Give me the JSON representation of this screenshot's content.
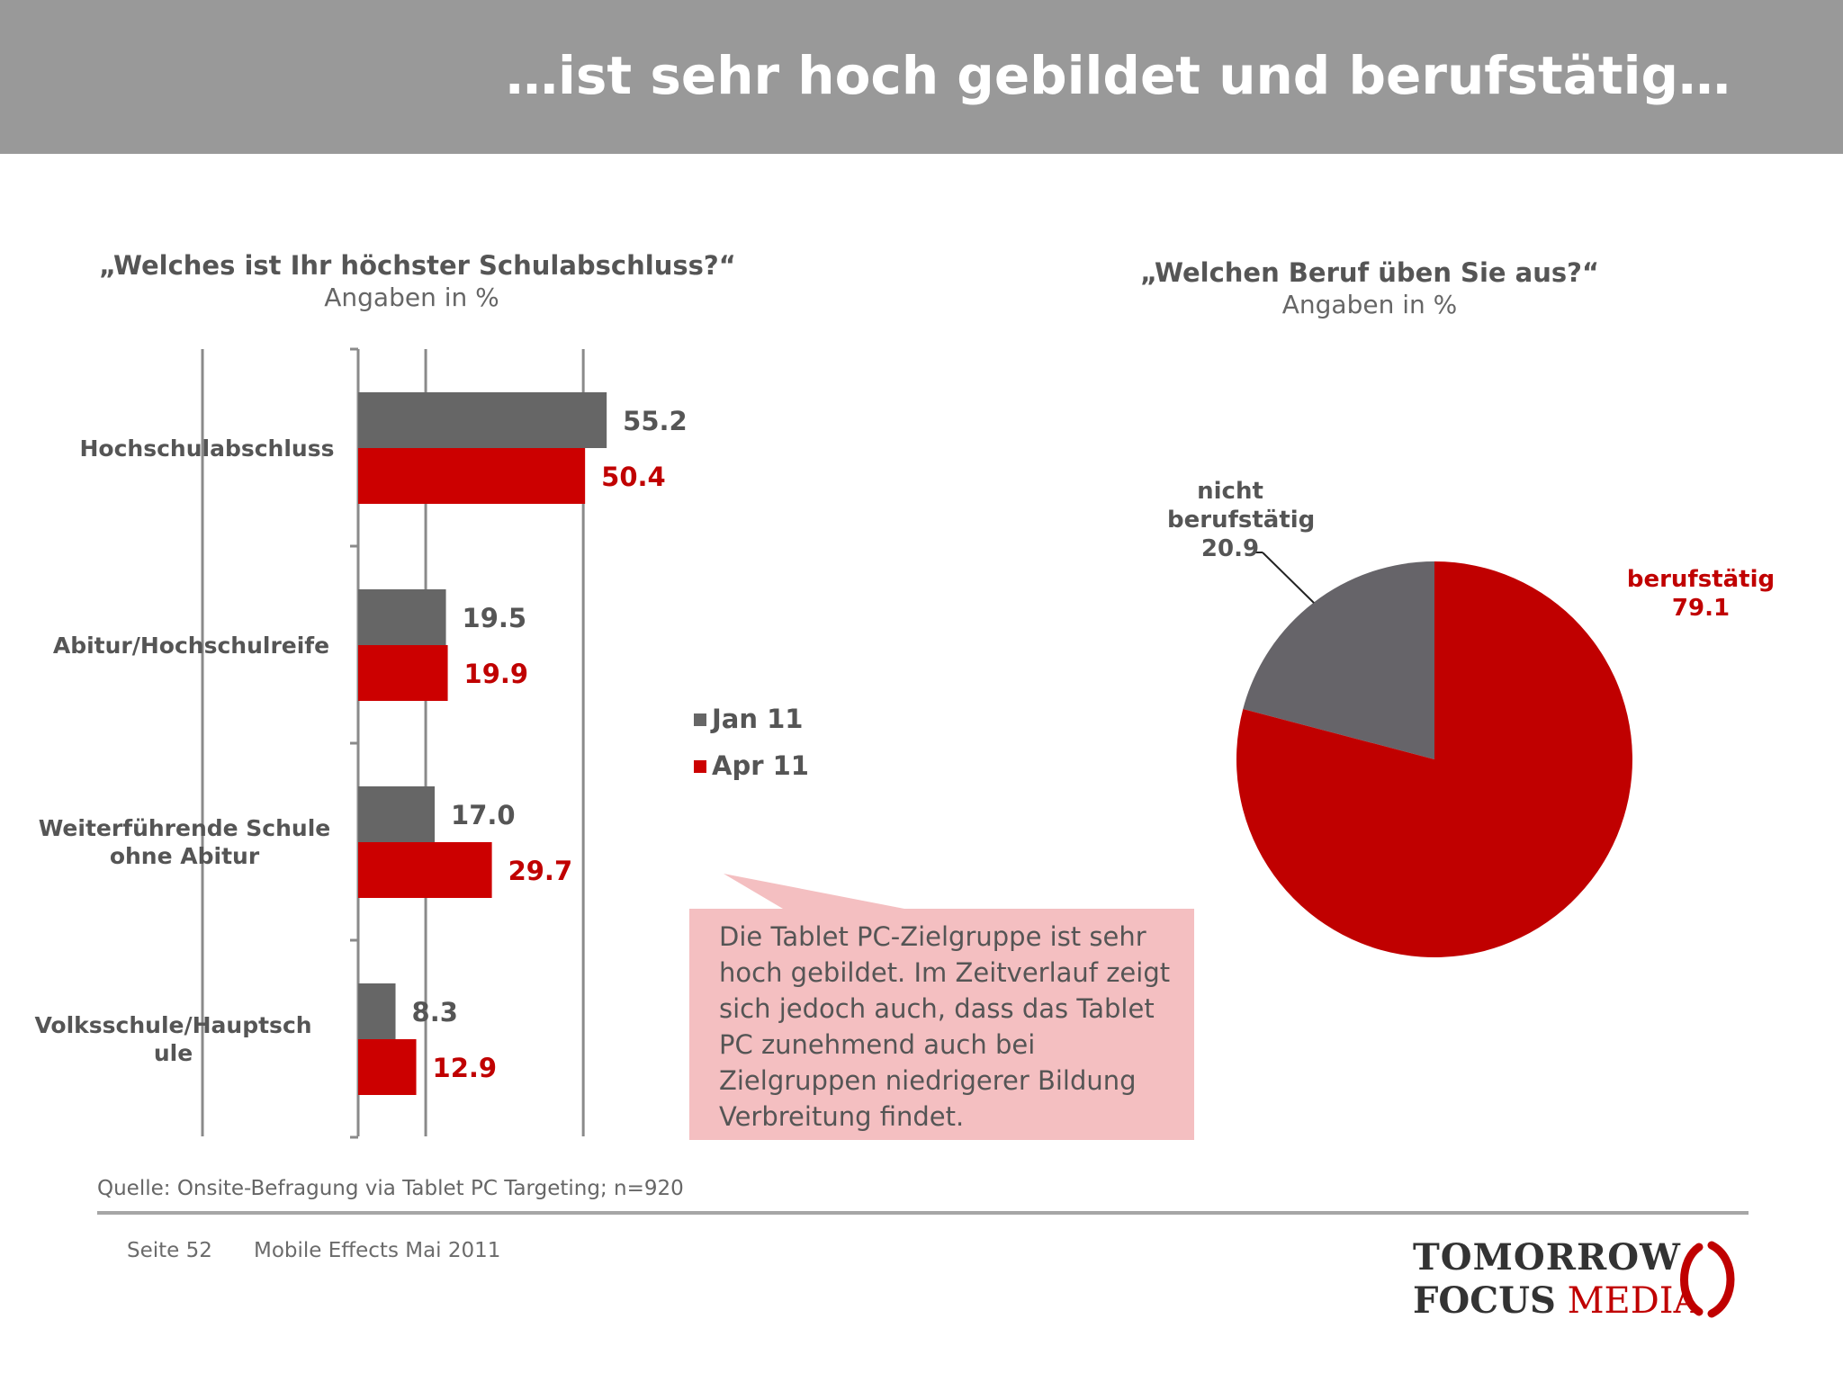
{
  "header": {
    "title": "…ist sehr hoch gebildet und berufstätig…"
  },
  "colors": {
    "header_bg": "#999999",
    "jan": "#666666",
    "apr": "#cc0000",
    "pie_grey": "#666469",
    "pie_red": "#c00000",
    "callout_bg": "#f4bfc1"
  },
  "left_chart": {
    "title": "„Welches ist Ihr höchster Schulabschluss?“",
    "subtitle": "Angaben in %"
  },
  "right_chart": {
    "title": "„Welchen Beruf üben Sie aus?“",
    "subtitle": "Angaben in %"
  },
  "legend": {
    "jan": "Jan 11",
    "apr": "Apr 11"
  },
  "callout": {
    "text": "Die Tablet PC-Zielgruppe ist sehr hoch gebildet. Im Zeitverlauf zeigt sich jedoch auch, dass das Tablet PC zunehmend auch bei Zielgruppen niedrigerer Bildung Verbreitung findet."
  },
  "source": "Quelle: Onsite-Befragung via Tablet PC Targeting; n=920",
  "footer": {
    "page": "Seite 52",
    "doc": "Mobile Effects Mai 2011"
  },
  "logo": {
    "line1": "TOMORROW",
    "line2a": "FOCUS",
    "line2b": "MEDIA"
  },
  "chart_data": [
    {
      "type": "bar",
      "orientation": "horizontal",
      "categories": [
        "Hochschulabschluss",
        "Abitur/Hochschulreife",
        "Weiterführende Schule ohne Abitur",
        "Volksschule/Hauptschule"
      ],
      "series": [
        {
          "name": "Jan 11",
          "values": [
            55.2,
            19.5,
            17.0,
            8.3
          ]
        },
        {
          "name": "Apr 11",
          "values": [
            50.4,
            19.9,
            29.7,
            12.9
          ]
        }
      ],
      "value_labels": {
        "Jan 11": [
          "55.2",
          "19.5",
          "17.0",
          "8.3"
        ],
        "Apr 11": [
          "50.4",
          "19.9",
          "29.7",
          "12.9"
        ]
      },
      "xlim": [
        0,
        65
      ],
      "grid": true,
      "legend_position": "right"
    },
    {
      "type": "pie",
      "labels": [
        "nicht berufstätig",
        "berufstätig"
      ],
      "values": [
        20.9,
        79.1
      ],
      "value_labels": [
        "20.9",
        "79.1"
      ]
    }
  ]
}
